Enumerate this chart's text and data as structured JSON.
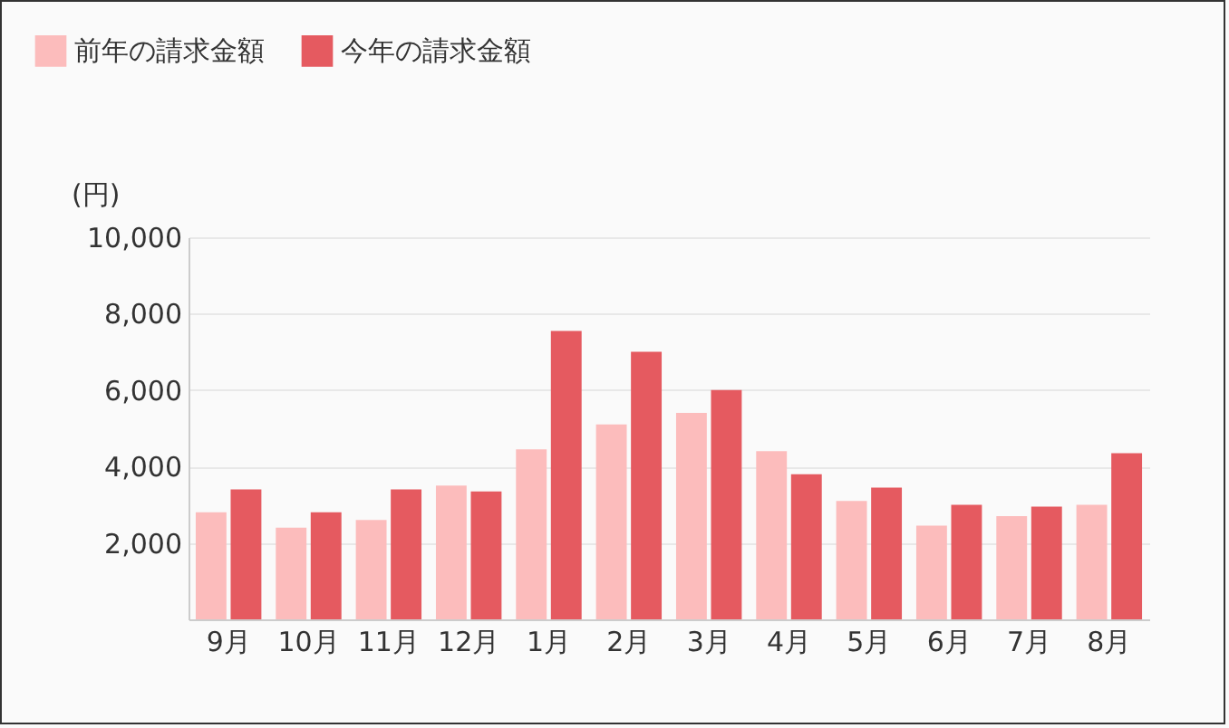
{
  "chart_data": {
    "type": "bar",
    "ylabel": "(円)",
    "categories": [
      "9月",
      "10月",
      "11月",
      "12月",
      "1月",
      "2月",
      "3月",
      "4月",
      "5月",
      "6月",
      "7月",
      "8月"
    ],
    "series": [
      {
        "name": "前年の請求金額",
        "color": "#fcbcbc",
        "values": [
          2800,
          2400,
          2600,
          3500,
          4450,
          5100,
          5400,
          4400,
          3100,
          2450,
          2700,
          3000
        ]
      },
      {
        "name": "今年の請求金額",
        "color": "#e55a60",
        "values": [
          3400,
          2800,
          3400,
          3350,
          7550,
          7000,
          6000,
          3800,
          3450,
          3000,
          2950,
          4350
        ]
      }
    ],
    "ylim": [
      0,
      10000
    ],
    "yticks": [
      {
        "value": 2000,
        "label": "2,000"
      },
      {
        "value": 4000,
        "label": "4,000"
      },
      {
        "value": 6000,
        "label": "6,000"
      },
      {
        "value": 8000,
        "label": "8,000"
      },
      {
        "value": 10000,
        "label": "10,000"
      }
    ],
    "grid": "y",
    "legend": "top left"
  }
}
